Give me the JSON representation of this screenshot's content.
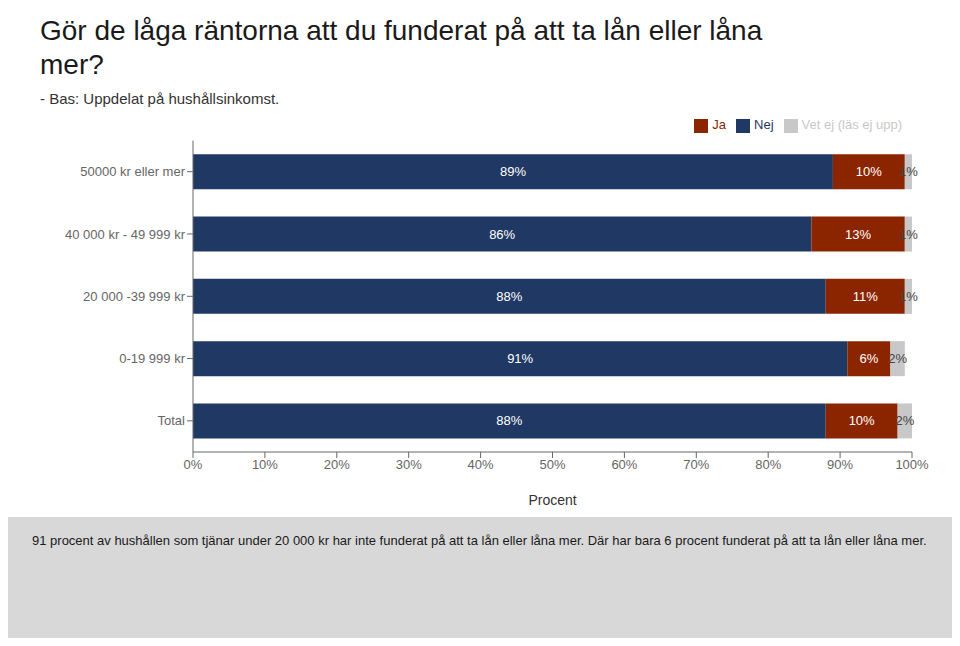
{
  "chart_data": {
    "type": "bar",
    "orientation": "horizontal",
    "stacked": true,
    "data_labels": true,
    "grid": false,
    "legend": "upper right",
    "title": "Gör de låga räntorna att du funderat på att ta lån eller låna mer?",
    "subtitle": "- Bas: Uppdelat på hushållsinkomst.",
    "xlabel": "Procent",
    "categories": [
      "50000 kr eller mer",
      "40 000 kr - 49 999 kr",
      "20 000 -39 999 kr",
      "0-19 999 kr",
      "Total"
    ],
    "series": [
      {
        "name": "Nej",
        "color": "#1F3864",
        "values": [
          89,
          86,
          88,
          91,
          88
        ],
        "value_labels": [
          "89%",
          "86%",
          "88%",
          "91%",
          "88%"
        ]
      },
      {
        "name": "Ja",
        "color": "#8B2500",
        "values": [
          10,
          13,
          11,
          6,
          10
        ],
        "value_labels": [
          "10%",
          "13%",
          "11%",
          "6%",
          "10%"
        ]
      },
      {
        "name": "Vet ej (läs ej upp)",
        "color": "#C8C8C8",
        "values": [
          1,
          1,
          1,
          2,
          2
        ],
        "value_labels": [
          "1%",
          "1%",
          "1%",
          "2%",
          "2%"
        ]
      }
    ],
    "xlim": [
      0,
      100
    ],
    "xticks": [
      {
        "value": 0,
        "label": "0%"
      },
      {
        "value": 10,
        "label": "10%"
      },
      {
        "value": 20,
        "label": "20%"
      },
      {
        "value": 30,
        "label": "30%"
      },
      {
        "value": 40,
        "label": "40%"
      },
      {
        "value": 50,
        "label": "50%"
      },
      {
        "value": 60,
        "label": "60%"
      },
      {
        "value": 70,
        "label": "70%"
      },
      {
        "value": 80,
        "label": "80%"
      },
      {
        "value": 90,
        "label": "90%"
      },
      {
        "value": 100,
        "label": "100%"
      }
    ],
    "annotations": [
      "91 procent av hushållen som tjänar under 20 000 kr har inte funderat på att ta lån eller låna mer. Där har bara 6 procent funderat på att ta lån eller låna mer."
    ]
  }
}
